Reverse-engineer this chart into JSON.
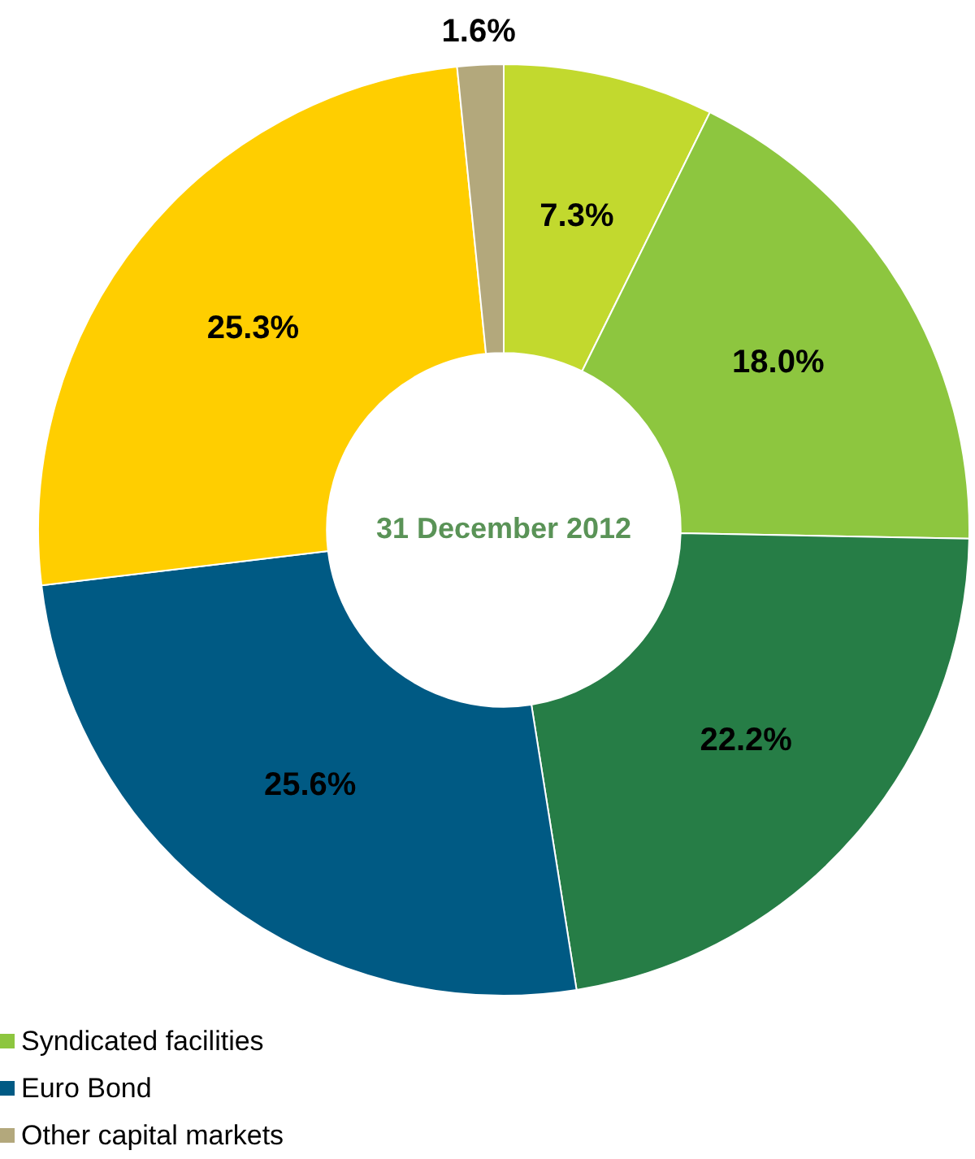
{
  "chart_data": {
    "type": "donut",
    "title": "31 December 2012",
    "categories": [
      null,
      "Syndicated facilities",
      null,
      "Euro Bond",
      null,
      "Other capital markets"
    ],
    "values": [
      7.3,
      18.0,
      22.2,
      25.6,
      25.3,
      1.6
    ],
    "value_labels": [
      "7.3%",
      "18.0%",
      "22.2%",
      "25.6%",
      "25.3%",
      "1.6%"
    ],
    "colors": [
      "#c2d92e",
      "#8dc63f",
      "#267d46",
      "#005a84",
      "#ffce00",
      "#b3a87c"
    ],
    "legend": "bottom left"
  }
}
